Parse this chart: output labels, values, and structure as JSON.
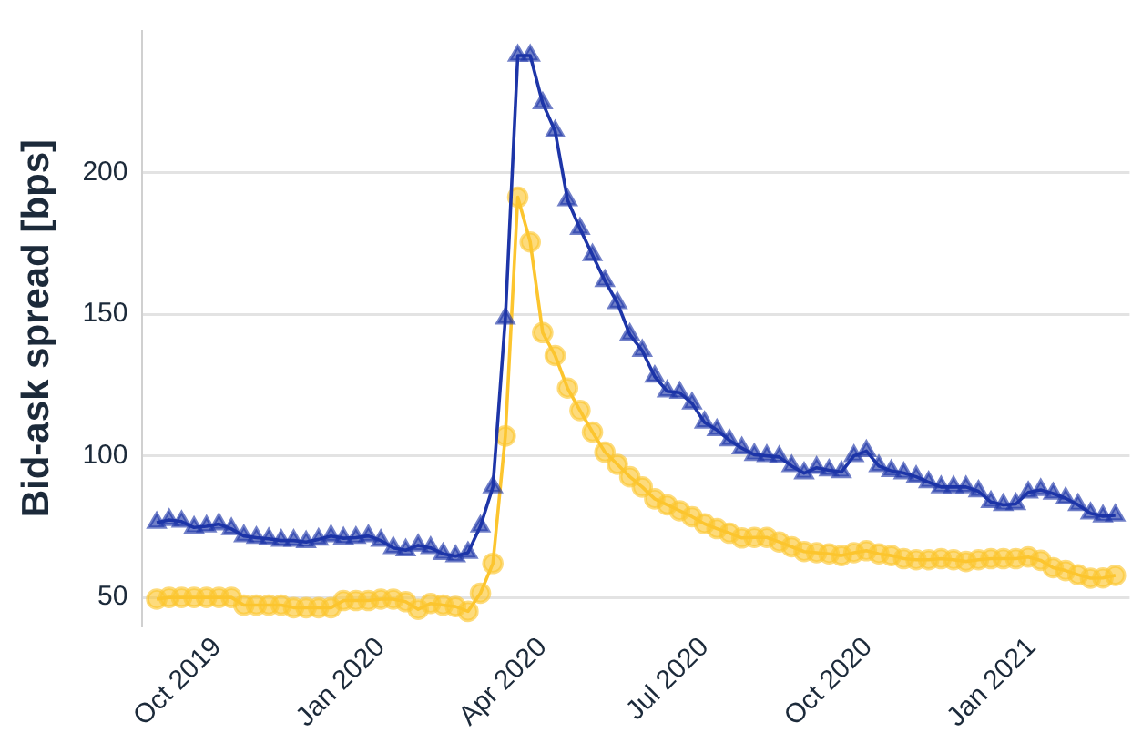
{
  "chart_data": {
    "type": "line",
    "ylabel": "Bid-ask spread [bps]",
    "x": [
      "2019-08-28",
      "2019-09-04",
      "2019-09-11",
      "2019-09-18",
      "2019-09-25",
      "2019-10-02",
      "2019-10-09",
      "2019-10-16",
      "2019-10-23",
      "2019-10-30",
      "2019-11-06",
      "2019-11-13",
      "2019-11-20",
      "2019-11-27",
      "2019-12-04",
      "2019-12-11",
      "2019-12-18",
      "2019-12-25",
      "2020-01-01",
      "2020-01-08",
      "2020-01-15",
      "2020-01-22",
      "2020-01-29",
      "2020-02-05",
      "2020-02-12",
      "2020-02-19",
      "2020-02-26",
      "2020-03-04",
      "2020-03-11",
      "2020-03-18",
      "2020-03-25",
      "2020-04-01",
      "2020-04-08",
      "2020-04-15",
      "2020-04-22",
      "2020-04-29",
      "2020-05-06",
      "2020-05-13",
      "2020-05-20",
      "2020-05-27",
      "2020-06-03",
      "2020-06-10",
      "2020-06-17",
      "2020-06-24",
      "2020-07-01",
      "2020-07-08",
      "2020-07-15",
      "2020-07-22",
      "2020-07-29",
      "2020-08-05",
      "2020-08-12",
      "2020-08-19",
      "2020-08-26",
      "2020-09-02",
      "2020-09-09",
      "2020-09-16",
      "2020-09-23",
      "2020-09-30",
      "2020-10-07",
      "2020-10-14",
      "2020-10-21",
      "2020-10-28",
      "2020-11-04",
      "2020-11-11",
      "2020-11-18",
      "2020-11-25",
      "2020-12-02",
      "2020-12-09",
      "2020-12-16",
      "2020-12-23",
      "2020-12-30",
      "2021-01-06",
      "2021-01-13",
      "2021-01-20",
      "2021-01-27",
      "2021-02-03",
      "2021-02-10",
      "2021-02-17"
    ],
    "series": [
      {
        "color": "#1d35a8",
        "marker": "triangle",
        "values": [
          76.4,
          77.4,
          76.8,
          74.7,
          75.1,
          75.9,
          74.2,
          71.7,
          71.1,
          70.7,
          70.1,
          70.1,
          69.6,
          70.5,
          71.7,
          70.9,
          71.1,
          71.7,
          70.1,
          67.5,
          66.7,
          68.4,
          67.5,
          65.4,
          64.6,
          65.8,
          75.1,
          89,
          148.5,
          241.3,
          241.3,
          224.5,
          214.6,
          190.3,
          180.2,
          170.9,
          161.8,
          154,
          142.8,
          137.1,
          128,
          122.8,
          122.3,
          118.5,
          111.8,
          109.1,
          105.5,
          102.7,
          100.4,
          100,
          99.6,
          96.4,
          93.9,
          95.8,
          94.9,
          94.3,
          100,
          101.7,
          96.4,
          94.7,
          93.9,
          92.6,
          90.7,
          89,
          89,
          89,
          87.5,
          83.7,
          82.7,
          83,
          87.1,
          88,
          86.7,
          85,
          82.7,
          79.7,
          78.7,
          79
        ]
      },
      {
        "color": "#fcc52e",
        "marker": "circle",
        "values": [
          49.4,
          50,
          50,
          50,
          50,
          50,
          50,
          47.3,
          47.3,
          47.3,
          47.3,
          46.4,
          46.4,
          46.4,
          46.4,
          48.9,
          48.9,
          48.9,
          49.4,
          49.4,
          48.5,
          45.8,
          47.9,
          47.3,
          46.8,
          45.1,
          51.5,
          62,
          107,
          191.3,
          175.5,
          143.5,
          135.4,
          123.9,
          116,
          108.4,
          101.3,
          97,
          92.6,
          89,
          84.8,
          82.7,
          80.6,
          78.5,
          76,
          74.3,
          72.7,
          71,
          71.2,
          71.2,
          69.6,
          67.9,
          66.2,
          65.8,
          65.4,
          64.8,
          65.8,
          66.5,
          65.4,
          64.8,
          63.7,
          63.3,
          63.3,
          63.7,
          63.3,
          62.7,
          63.3,
          63.7,
          63.7,
          63.7,
          64.3,
          63.1,
          60.5,
          59.5,
          58,
          56.8,
          56.9,
          57.8
        ]
      }
    ],
    "xlim": [
      "2019-08-20",
      "2021-02-25"
    ],
    "xticks": [
      {
        "value": "2019-10-01",
        "label": "Oct 2019"
      },
      {
        "value": "2020-01-01",
        "label": "Jan 2020"
      },
      {
        "value": "2020-04-01",
        "label": "Apr 2020"
      },
      {
        "value": "2020-07-01",
        "label": "Jul 2020"
      },
      {
        "value": "2020-10-01",
        "label": "Oct 2020"
      },
      {
        "value": "2021-01-01",
        "label": "Jan 2021"
      }
    ],
    "ylim": [
      40,
      250
    ],
    "yticks": [
      50,
      100,
      150,
      200
    ],
    "grid": "y",
    "legend": false,
    "line_style": "solid"
  }
}
